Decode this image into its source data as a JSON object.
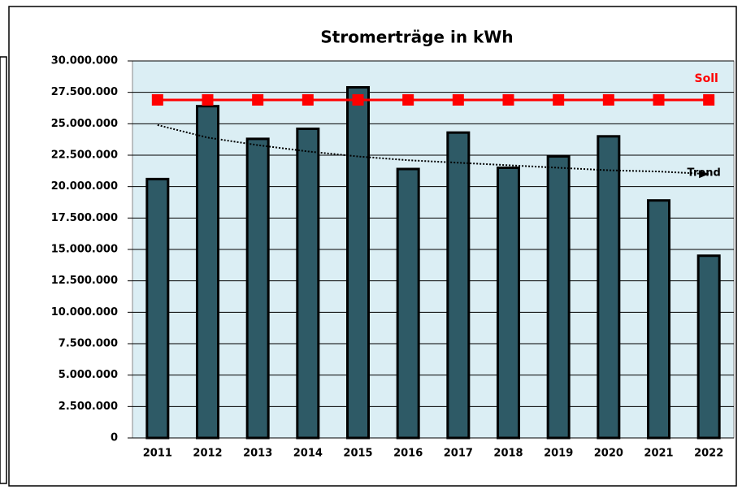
{
  "chart_data": {
    "type": "bar",
    "title": "Stromerträge in kWh",
    "categories": [
      "2011",
      "2012",
      "2013",
      "2014",
      "2015",
      "2016",
      "2017",
      "2018",
      "2019",
      "2020",
      "2021",
      "2022"
    ],
    "values": [
      20600000,
      26400000,
      23800000,
      24600000,
      27900000,
      21400000,
      24300000,
      21500000,
      22400000,
      24000000,
      18900000,
      14500000
    ],
    "color": "#2e5a66",
    "soll": {
      "label": "Soll",
      "color": "#ff0000",
      "values": [
        26900000,
        26900000,
        26900000,
        26900000,
        26900000,
        26900000,
        26900000,
        26900000,
        26900000,
        26900000,
        26900000,
        26900000
      ]
    },
    "trend": {
      "label": "Trend",
      "color": "#000000",
      "values": [
        24900000,
        23900000,
        23300000,
        22800000,
        22400000,
        22100000,
        21900000,
        21700000,
        21500000,
        21300000,
        21200000,
        21000000
      ]
    },
    "ylim": [
      0,
      30000000
    ],
    "yticks": [
      0,
      {
        "value": 2500000,
        "label": "2.500.000"
      },
      {
        "value": 5000000,
        "label": "5.000.000"
      },
      {
        "value": 7500000,
        "label": "7.500.000"
      },
      {
        "value": 10000000,
        "label": "10.000.000"
      },
      {
        "value": 12500000,
        "label": "12.500.000"
      },
      {
        "value": 15000000,
        "label": "15.000.000"
      },
      {
        "value": 17500000,
        "label": "17.500.000"
      },
      {
        "value": 20000000,
        "label": "20.000.000"
      },
      {
        "value": 22500000,
        "label": "22.500.000"
      },
      {
        "value": 25000000,
        "label": "25.000.000"
      },
      {
        "value": 27500000,
        "label": "27.500.000"
      },
      {
        "value": 30000000,
        "label": "30.000.000"
      }
    ],
    "grid": true
  }
}
